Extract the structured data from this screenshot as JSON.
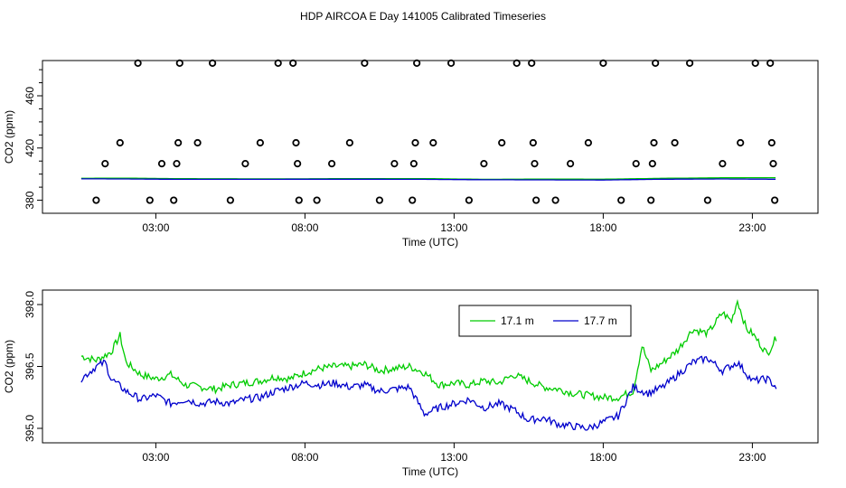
{
  "figure_title": "HDP AIRCOA E  Day 141005  Calibrated Timeseries",
  "chart_data": [
    {
      "type": "scatter+line",
      "title": "",
      "xlabel": "Time (UTC)",
      "ylabel": "CO2 (ppm)",
      "xlim": [
        -0.8,
        25.2
      ],
      "ylim": [
        370,
        487
      ],
      "x_ticks": [
        3,
        8,
        13,
        18,
        23
      ],
      "x_tick_labels": [
        "03:00",
        "08:00",
        "13:00",
        "18:00",
        "23:00"
      ],
      "y_ticks": [
        380,
        420,
        460
      ],
      "y_tick_labels": [
        "380",
        "420",
        "460"
      ],
      "calibration_points": {
        "name": "calibration standards",
        "color": "#000000",
        "points": [
          [
            1.0,
            380
          ],
          [
            1.3,
            408
          ],
          [
            1.8,
            424
          ],
          [
            2.4,
            485
          ],
          [
            2.8,
            380
          ],
          [
            3.2,
            408
          ],
          [
            3.6,
            380
          ],
          [
            3.7,
            408
          ],
          [
            3.75,
            424
          ],
          [
            3.8,
            485
          ],
          [
            4.4,
            424
          ],
          [
            4.9,
            485
          ],
          [
            5.5,
            380
          ],
          [
            6.0,
            408
          ],
          [
            6.5,
            424
          ],
          [
            7.1,
            485
          ],
          [
            7.6,
            485
          ],
          [
            7.7,
            424
          ],
          [
            7.75,
            408
          ],
          [
            7.8,
            380
          ],
          [
            8.4,
            380
          ],
          [
            8.9,
            408
          ],
          [
            9.5,
            424
          ],
          [
            10.0,
            485
          ],
          [
            10.5,
            380
          ],
          [
            11.0,
            408
          ],
          [
            11.6,
            380
          ],
          [
            11.65,
            408
          ],
          [
            11.7,
            424
          ],
          [
            11.75,
            485
          ],
          [
            12.3,
            424
          ],
          [
            12.9,
            485
          ],
          [
            13.5,
            380
          ],
          [
            14.0,
            408
          ],
          [
            14.6,
            424
          ],
          [
            15.1,
            485
          ],
          [
            15.6,
            485
          ],
          [
            15.65,
            424
          ],
          [
            15.7,
            408
          ],
          [
            15.75,
            380
          ],
          [
            16.4,
            380
          ],
          [
            16.9,
            408
          ],
          [
            17.5,
            424
          ],
          [
            18.0,
            485
          ],
          [
            18.6,
            380
          ],
          [
            19.1,
            408
          ],
          [
            19.6,
            380
          ],
          [
            19.65,
            408
          ],
          [
            19.7,
            424
          ],
          [
            19.75,
            485
          ],
          [
            20.4,
            424
          ],
          [
            20.9,
            485
          ],
          [
            21.5,
            380
          ],
          [
            22.0,
            408
          ],
          [
            22.6,
            424
          ],
          [
            23.1,
            485
          ],
          [
            23.6,
            485
          ],
          [
            23.65,
            424
          ],
          [
            23.7,
            408
          ],
          [
            23.75,
            380
          ]
        ]
      },
      "series": [
        {
          "name": "17.1 m",
          "color": "#00cc00",
          "x": [
            0.5,
            2,
            4,
            6,
            8,
            10,
            12,
            14,
            16,
            18,
            20,
            22,
            23.8
          ],
          "values": [
            396.8,
            396.9,
            396.5,
            396.4,
            396.4,
            396.6,
            396.6,
            396.0,
            396.2,
            396.1,
            396.8,
            397.2,
            397.3
          ]
        },
        {
          "name": "17.7 m",
          "color": "#0000cc",
          "x": [
            0.5,
            2,
            4,
            6,
            8,
            10,
            12,
            14,
            16,
            18,
            20,
            22,
            23.8
          ],
          "values": [
            396.4,
            396.3,
            396.0,
            396.0,
            396.1,
            396.1,
            396.0,
            395.7,
            395.6,
            395.5,
            396.1,
            396.3,
            396.1
          ]
        }
      ]
    },
    {
      "type": "line",
      "title": "",
      "xlabel": "Time (UTC)",
      "ylabel": "CO2 (ppm)",
      "xlim": [
        -0.8,
        25.2
      ],
      "ylim": [
        394.65,
        398.35
      ],
      "x_ticks": [
        3,
        8,
        13,
        18,
        23
      ],
      "x_tick_labels": [
        "03:00",
        "08:00",
        "13:00",
        "18:00",
        "23:00"
      ],
      "y_ticks": [
        395.0,
        396.5,
        398.0
      ],
      "y_tick_labels": [
        "395.0",
        "396.5",
        "398.0"
      ],
      "legend": {
        "position": "top-right",
        "entries": [
          "17.1 m",
          "17.7 m"
        ]
      },
      "series": [
        {
          "name": "17.1 m",
          "color": "#00cc00",
          "x": [
            0.5,
            1.0,
            1.5,
            1.8,
            2.0,
            2.5,
            3.0,
            3.5,
            4.0,
            4.5,
            5.0,
            5.5,
            6.0,
            6.5,
            7.0,
            7.5,
            8.0,
            8.5,
            9.0,
            9.5,
            10.0,
            10.5,
            11.0,
            11.5,
            12.0,
            12.5,
            13.0,
            13.5,
            14.0,
            14.5,
            15.0,
            15.5,
            16.0,
            16.5,
            17.0,
            17.5,
            18.0,
            18.5,
            19.0,
            19.3,
            19.6,
            20.0,
            20.5,
            21.0,
            21.5,
            22.0,
            22.3,
            22.5,
            22.8,
            23.0,
            23.5,
            23.8
          ],
          "values": [
            396.75,
            396.65,
            396.85,
            397.25,
            396.6,
            396.3,
            396.2,
            396.3,
            396.05,
            396.0,
            395.95,
            396.05,
            396.1,
            396.15,
            396.25,
            396.2,
            396.35,
            396.45,
            396.5,
            396.5,
            396.55,
            396.4,
            396.45,
            396.5,
            396.35,
            396.05,
            396.1,
            396.05,
            396.15,
            396.1,
            396.3,
            396.15,
            396.0,
            395.95,
            395.85,
            395.8,
            395.75,
            395.75,
            395.9,
            397.0,
            396.4,
            396.6,
            396.9,
            397.4,
            397.3,
            397.8,
            397.6,
            398.1,
            397.4,
            397.3,
            396.8,
            397.2
          ]
        },
        {
          "name": "17.7 m",
          "color": "#0000cc",
          "x": [
            0.5,
            1.0,
            1.3,
            1.5,
            2.0,
            2.5,
            3.0,
            3.5,
            4.0,
            4.5,
            5.0,
            5.5,
            6.0,
            6.5,
            7.0,
            7.5,
            8.0,
            8.5,
            9.0,
            9.5,
            10.0,
            10.5,
            11.0,
            11.5,
            12.0,
            12.5,
            13.0,
            13.5,
            14.0,
            14.5,
            15.0,
            15.5,
            16.0,
            16.5,
            17.0,
            17.5,
            18.0,
            18.5,
            19.0,
            19.5,
            20.0,
            20.5,
            21.0,
            21.5,
            22.0,
            22.5,
            23.0,
            23.5,
            23.8
          ],
          "values": [
            396.2,
            396.5,
            396.6,
            396.2,
            395.9,
            395.7,
            395.8,
            395.6,
            395.7,
            395.6,
            395.65,
            395.6,
            395.7,
            395.75,
            395.9,
            396.0,
            396.1,
            396.05,
            396.1,
            396.0,
            396.05,
            395.9,
            395.95,
            396.0,
            395.35,
            395.5,
            395.6,
            395.7,
            395.5,
            395.6,
            395.45,
            395.2,
            395.25,
            395.1,
            395.05,
            395.0,
            395.15,
            395.3,
            396.0,
            395.85,
            396.0,
            396.3,
            396.6,
            396.7,
            396.4,
            396.6,
            396.15,
            396.2,
            396.0
          ]
        }
      ]
    }
  ]
}
